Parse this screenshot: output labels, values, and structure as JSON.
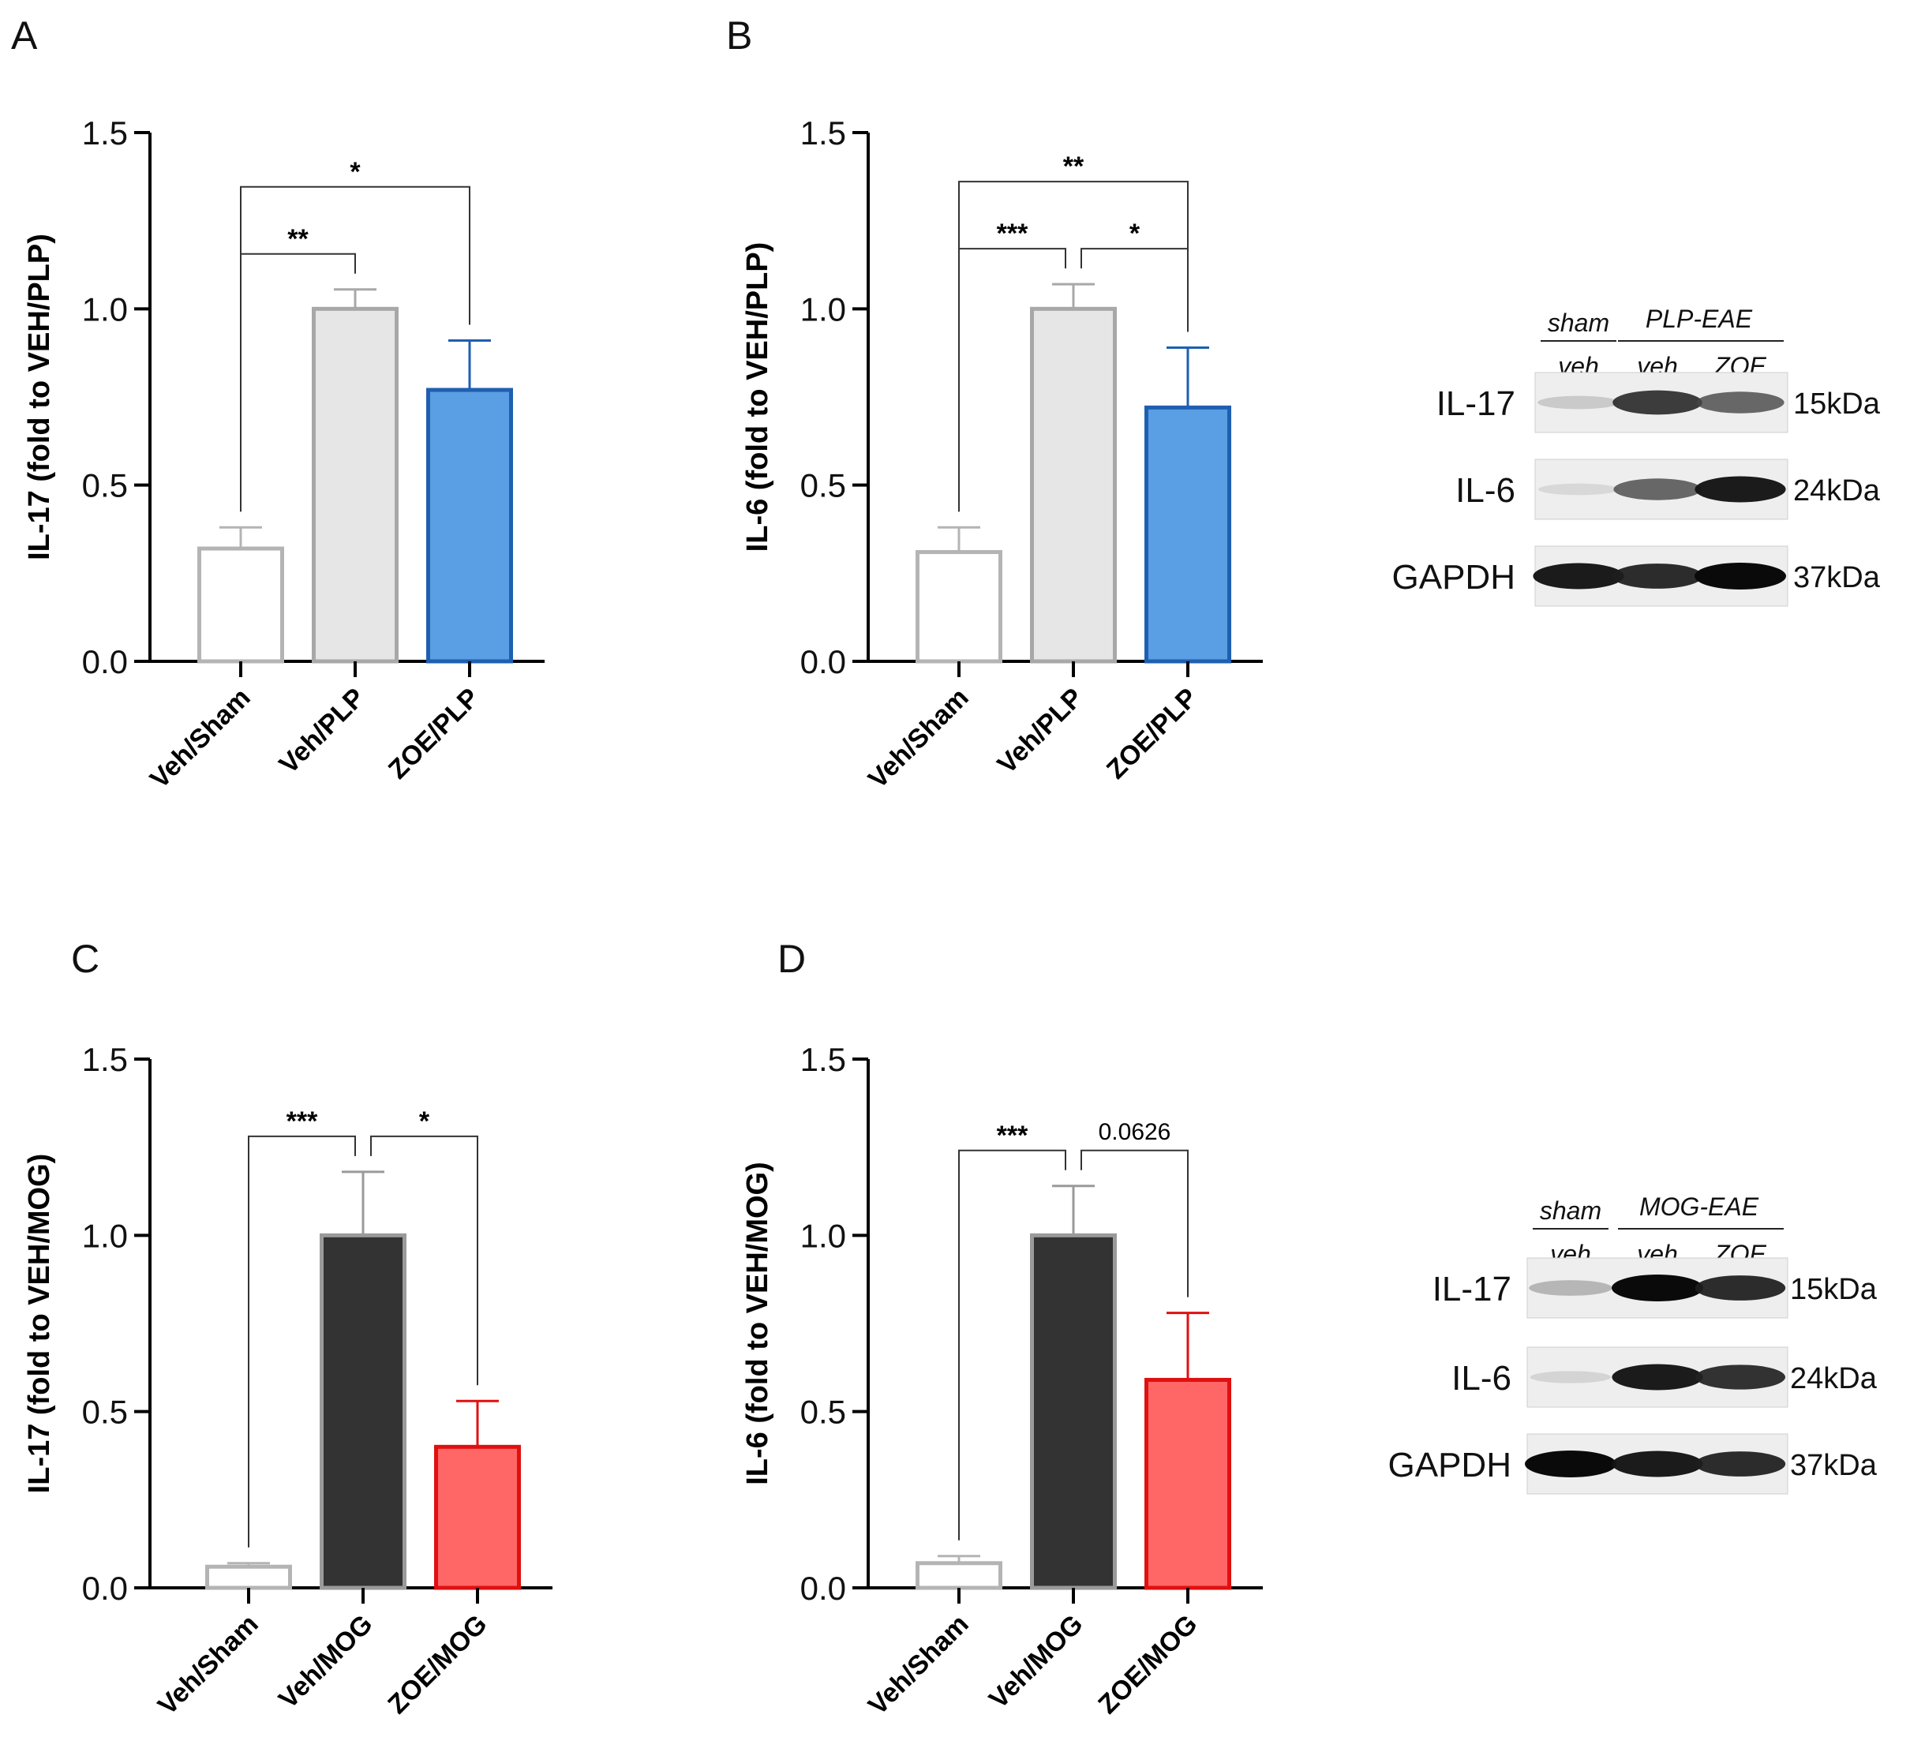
{
  "figure": {
    "panel_labels": [
      "A",
      "B",
      "C",
      "D"
    ]
  },
  "chart_data": [
    {
      "panel": "A",
      "type": "bar",
      "title": "",
      "xlabel": "",
      "ylabel": "IL-17 (fold to VEH/PLP)",
      "ylim": [
        0,
        1.5
      ],
      "yticks": [
        "0.0",
        "0.5",
        "1.0",
        "1.5"
      ],
      "categories": [
        "Veh/Sham",
        "Veh/PLP",
        "ZOE/PLP"
      ],
      "values": [
        0.32,
        1.0,
        0.77
      ],
      "errors": [
        0.06,
        0.055,
        0.14
      ],
      "fills": [
        "#ffffff",
        "#e6e6e6",
        "#5a9ee3"
      ],
      "strokes": [
        "#b4b4b4",
        "#a8a8a8",
        "#1f5fb0"
      ],
      "annotations": [
        {
          "from": 0,
          "to": 1,
          "label": "**",
          "level": 0
        },
        {
          "from": 0,
          "to": 2,
          "label": "*",
          "level": 1
        }
      ]
    },
    {
      "panel": "B",
      "type": "bar",
      "title": "",
      "xlabel": "",
      "ylabel": "IL-6 (fold to VEH/PLP)",
      "ylim": [
        0,
        1.5
      ],
      "yticks": [
        "0.0",
        "0.5",
        "1.0",
        "1.5"
      ],
      "categories": [
        "Veh/Sham",
        "Veh/PLP",
        "ZOE/PLP"
      ],
      "values": [
        0.31,
        1.0,
        0.72
      ],
      "errors": [
        0.07,
        0.07,
        0.17
      ],
      "fills": [
        "#ffffff",
        "#e6e6e6",
        "#5a9ee3"
      ],
      "strokes": [
        "#b4b4b4",
        "#a8a8a8",
        "#1f5fb0"
      ],
      "annotations": [
        {
          "from": 0,
          "to": 1,
          "label": "***",
          "level": 0
        },
        {
          "from": 1,
          "to": 2,
          "label": "*",
          "level": 0
        },
        {
          "from": 0,
          "to": 2,
          "label": "**",
          "level": 1
        }
      ]
    },
    {
      "panel": "C",
      "type": "bar",
      "title": "",
      "xlabel": "",
      "ylabel": "IL-17 (fold to VEH/MOG)",
      "ylim": [
        0,
        1.5
      ],
      "yticks": [
        "0.0",
        "0.5",
        "1.0",
        "1.5"
      ],
      "categories": [
        "Veh/Sham",
        "Veh/MOG",
        "ZOE/MOG"
      ],
      "values": [
        0.06,
        1.0,
        0.4
      ],
      "errors": [
        0.01,
        0.18,
        0.13
      ],
      "fills": [
        "#ffffff",
        "#333333",
        "#ff6666"
      ],
      "strokes": [
        "#b4b4b4",
        "#9a9a9a",
        "#e01010"
      ],
      "annotations": [
        {
          "from": 0,
          "to": 1,
          "label": "***",
          "level": 0
        },
        {
          "from": 1,
          "to": 2,
          "label": "*",
          "level": 0
        }
      ]
    },
    {
      "panel": "D",
      "type": "bar",
      "title": "",
      "xlabel": "",
      "ylabel": "IL-6 (fold to VEH/MOG)",
      "ylim": [
        0,
        1.5
      ],
      "yticks": [
        "0.0",
        "0.5",
        "1.0",
        "1.5"
      ],
      "categories": [
        "Veh/Sham",
        "Veh/MOG",
        "ZOE/MOG"
      ],
      "values": [
        0.07,
        1.0,
        0.59
      ],
      "errors": [
        0.02,
        0.14,
        0.19
      ],
      "fills": [
        "#ffffff",
        "#333333",
        "#ff6666"
      ],
      "strokes": [
        "#b4b4b4",
        "#9a9a9a",
        "#e01010"
      ],
      "annotations": [
        {
          "from": 0,
          "to": 1,
          "label": "***",
          "level": 0
        },
        {
          "from": 1,
          "to": 2,
          "label": "0.0626",
          "level": 0
        }
      ]
    }
  ],
  "blots": [
    {
      "group_header_left_top": "sham",
      "group_header_left_bottom": "veh",
      "group_header_right_top": "PLP-EAE",
      "lane_label_2": "veh",
      "lane_label_3": "ZOE",
      "rows": [
        {
          "protein": "IL-17",
          "size": "15kDa",
          "intensity": [
            0.22,
            0.85,
            0.7
          ]
        },
        {
          "protein": "IL-6",
          "size": "24kDa",
          "intensity": [
            0.12,
            0.7,
            0.95
          ]
        },
        {
          "protein": "GAPDH",
          "size": "37kDa",
          "intensity": [
            0.95,
            0.9,
            1.0
          ]
        }
      ]
    },
    {
      "group_header_left_top": "sham",
      "group_header_left_bottom": "veh",
      "group_header_right_top": "MOG-EAE",
      "lane_label_2": "veh",
      "lane_label_3": "ZOE",
      "rows": [
        {
          "protein": "IL-17",
          "size": "15kDa",
          "intensity": [
            0.35,
            1.0,
            0.9
          ]
        },
        {
          "protein": "IL-6",
          "size": "24kDa",
          "intensity": [
            0.15,
            0.95,
            0.88
          ]
        },
        {
          "protein": "GAPDH",
          "size": "37kDa",
          "intensity": [
            1.0,
            0.95,
            0.9
          ]
        }
      ]
    }
  ]
}
